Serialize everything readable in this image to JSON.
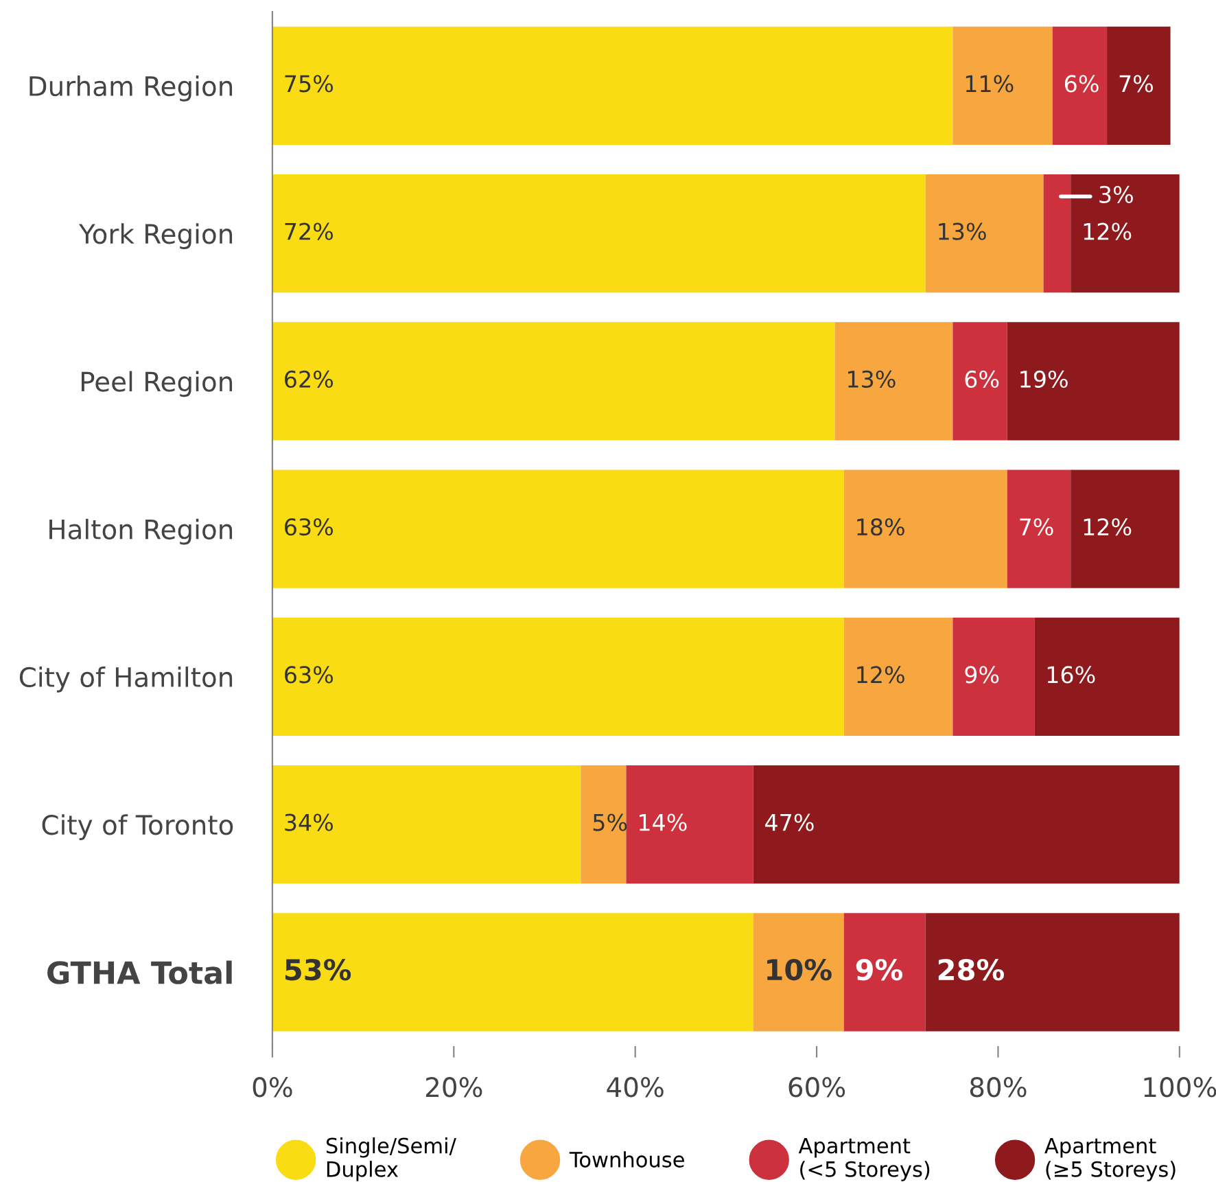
{
  "chart_data": {
    "type": "bar",
    "orientation": "horizontal",
    "stacked": true,
    "grid": false,
    "legend": "bottom",
    "categories": [
      "Durham Region",
      "York Region",
      "Peel Region",
      "Halton Region",
      "City of Hamilton",
      "City of Toronto",
      "GTHA Total"
    ],
    "series": [
      {
        "name": "Single/Semi/\nDuplex",
        "color": "#f9dc14",
        "values": [
          75,
          72,
          62,
          63,
          63,
          34,
          53
        ],
        "value_labels": [
          "75%",
          "72%",
          "62%",
          "63%",
          "63%",
          "34%",
          "53%"
        ]
      },
      {
        "name": "Townhouse",
        "color": "#f7a640",
        "values": [
          11,
          13,
          13,
          18,
          12,
          5,
          10
        ],
        "value_labels": [
          "11%",
          "13%",
          "13%",
          "18%",
          "12%",
          "5%",
          "10%"
        ]
      },
      {
        "name": "Apartment\n(<5 Storeys)",
        "color": "#cc313d",
        "values": [
          6,
          3,
          6,
          7,
          9,
          14,
          9
        ],
        "value_labels": [
          "6%",
          "3%",
          "6%",
          "7%",
          "9%",
          "14%",
          "9%"
        ]
      },
      {
        "name": "Apartment\n(≥5 Storeys)",
        "color": "#8f1a1e",
        "values": [
          7,
          12,
          19,
          12,
          16,
          47,
          28
        ],
        "value_labels": [
          "7%",
          "12%",
          "19%",
          "12%",
          "16%",
          "47%",
          "28%"
        ]
      }
    ],
    "xlim": [
      0,
      100
    ],
    "xticks": [
      {
        "value": 0,
        "label": "0%"
      },
      {
        "value": 20,
        "label": "20%"
      },
      {
        "value": 40,
        "label": "40%"
      },
      {
        "value": 60,
        "label": "60%"
      },
      {
        "value": 80,
        "label": "80%"
      },
      {
        "value": 100,
        "label": "100%"
      }
    ]
  }
}
